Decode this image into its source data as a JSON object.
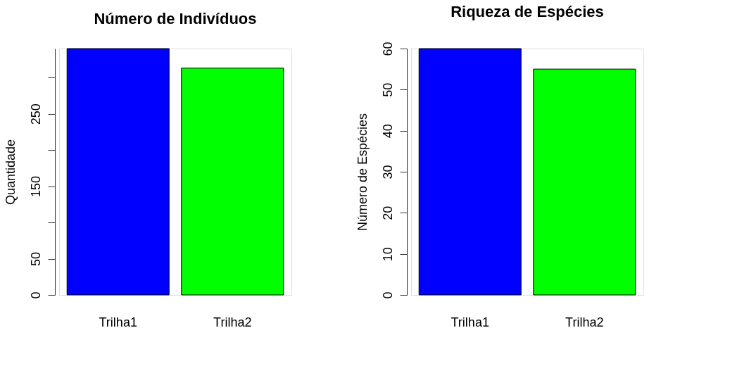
{
  "chart_data": [
    {
      "type": "bar",
      "title": "Número de Indivíduos",
      "ylabel": "Quantidade",
      "categories": [
        "Trilha1",
        "Trilha2"
      ],
      "values": [
        340,
        313
      ],
      "colors": [
        "#0000ff",
        "#00ff00"
      ],
      "ylim": [
        0,
        340
      ],
      "yticks": [
        0,
        50,
        {
          "value": 100,
          "label": null
        },
        150,
        {
          "value": 200,
          "label": null
        },
        250,
        {
          "value": 300,
          "label": null
        }
      ],
      "grid": false
    },
    {
      "type": "bar",
      "title": "Riqueza de Espécies",
      "ylabel": "Número de Espécies",
      "categories": [
        "Trilha1",
        "Trilha2"
      ],
      "values": [
        60,
        55
      ],
      "colors": [
        "#0000ff",
        "#00ff00"
      ],
      "ylim": [
        0,
        60
      ],
      "yticks": [
        0,
        10,
        20,
        30,
        40,
        50,
        60
      ],
      "grid": false
    }
  ]
}
